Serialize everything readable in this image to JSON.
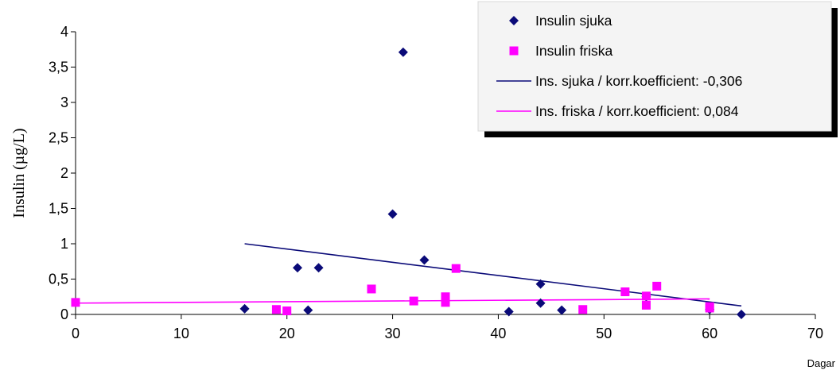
{
  "chart_data": {
    "type": "scatter",
    "xlabel": "Dagar",
    "ylabel": "Insulin (µg/L)",
    "xlim": [
      0,
      70
    ],
    "ylim": [
      0,
      4
    ],
    "x_ticks": [
      0,
      10,
      20,
      30,
      40,
      50,
      60,
      70
    ],
    "x_tick_labels": [
      "0",
      "10",
      "20",
      "30",
      "40",
      "50",
      "60",
      "70"
    ],
    "y_ticks": [
      0,
      0.5,
      1,
      1.5,
      2,
      2.5,
      3,
      3.5,
      4
    ],
    "y_tick_labels": [
      "0",
      "0,5",
      "1",
      "1,5",
      "2",
      "2,5",
      "3",
      "3,5",
      "4"
    ],
    "grid": false,
    "legend_position": "top-right",
    "series": [
      {
        "name": "Insulin sjuka",
        "marker": "diamond",
        "color": "#0a0a78",
        "points": [
          [
            16,
            0.08
          ],
          [
            21,
            0.66
          ],
          [
            22,
            0.06
          ],
          [
            23,
            0.66
          ],
          [
            30,
            1.42
          ],
          [
            31,
            3.71
          ],
          [
            33,
            0.77
          ],
          [
            41,
            0.04
          ],
          [
            44,
            0.43
          ],
          [
            44,
            0.16
          ],
          [
            46,
            0.06
          ],
          [
            54,
            0.25
          ],
          [
            60,
            0.07
          ],
          [
            63,
            0.0
          ]
        ]
      },
      {
        "name": "Insulin friska",
        "marker": "square",
        "color": "#ff00ff",
        "points": [
          [
            0,
            0.17
          ],
          [
            19,
            0.07
          ],
          [
            20,
            0.05
          ],
          [
            28,
            0.36
          ],
          [
            32,
            0.19
          ],
          [
            35,
            0.25
          ],
          [
            35,
            0.17
          ],
          [
            36,
            0.65
          ],
          [
            48,
            0.07
          ],
          [
            52,
            0.32
          ],
          [
            54,
            0.26
          ],
          [
            54,
            0.13
          ],
          [
            55,
            0.4
          ],
          [
            60,
            0.11
          ],
          [
            60,
            0.09
          ]
        ]
      }
    ],
    "trendlines": [
      {
        "name": "Ins. sjuka / korr.koefficient: -0,306",
        "color": "#0a0a78",
        "from": [
          16,
          1.0
        ],
        "to": [
          63,
          0.12
        ]
      },
      {
        "name": "Ins. friska / korr.koefficient: 0,084",
        "color": "#ff00ff",
        "from": [
          0,
          0.16
        ],
        "to": [
          60,
          0.22
        ]
      }
    ]
  }
}
